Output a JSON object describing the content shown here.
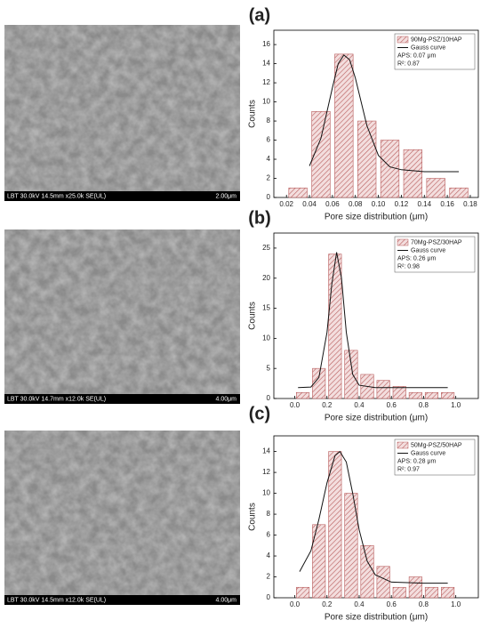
{
  "panels": [
    {
      "label": "(a)",
      "image_caption": "LBT 30.0kV 14.5mm x25.0k SE(UL)",
      "scale_bar": "2.00μm"
    },
    {
      "label": "(b)",
      "image_caption": "LBT 30.0kV 14.7mm x12.0k SE(UL)",
      "scale_bar": "4.00μm"
    },
    {
      "label": "(c)",
      "image_caption": "LBT 30.0kV 14.5mm x12.0k SE(UL)",
      "scale_bar": "4.00μm"
    }
  ],
  "chart_data": [
    {
      "type": "histogram",
      "name": "90Mg-PSZ/10HAP",
      "color": "#b85c5c",
      "x_label": "Pore size distribution (μm)",
      "y_label": "Counts",
      "bins": [
        0.02,
        0.04,
        0.06,
        0.08,
        0.1,
        0.12,
        0.14,
        0.16,
        0.18
      ],
      "values": [
        1,
        9,
        15,
        8,
        6,
        5,
        2,
        1
      ],
      "curve": {
        "name": "Gauss curve",
        "color": "#111111",
        "x": [
          0.04,
          0.05,
          0.06,
          0.065,
          0.07,
          0.075,
          0.08,
          0.09,
          0.1,
          0.11,
          0.12,
          0.14,
          0.17
        ],
        "values": [
          3.3,
          6.2,
          11.5,
          14.0,
          14.9,
          14.4,
          12.5,
          7.5,
          4.4,
          3.2,
          2.9,
          2.7,
          2.7
        ]
      },
      "annotations": [
        "APS: 0.07 μm",
        "R²: 0.87"
      ],
      "xlim": [
        0.009,
        0.187
      ],
      "xticks": [
        0.02,
        0.04,
        0.06,
        0.08,
        {
          "value": 0.1,
          "label": "0.10"
        },
        0.12,
        0.14,
        0.16,
        0.18
      ],
      "ylim": [
        0,
        17.5
      ],
      "yticks": [
        0,
        2,
        4,
        6,
        8,
        10,
        12,
        14,
        16
      ],
      "legend": "upper right"
    },
    {
      "type": "histogram",
      "name": "70Mg-PSZ/30HAP",
      "color": "#b85c5c",
      "x_label": "Pore size distribution (μm)",
      "y_label": "Counts",
      "bins": [
        0,
        0.1,
        0.2,
        0.3,
        0.4,
        0.5,
        0.6,
        0.7,
        0.8,
        0.9,
        1
      ],
      "values": [
        1,
        5,
        24,
        8,
        4,
        3,
        2,
        1,
        1,
        1
      ],
      "curve": {
        "name": "Gauss curve",
        "color": "#111111",
        "x": [
          0.02,
          0.1,
          0.15,
          0.2,
          0.23,
          0.26,
          0.29,
          0.32,
          0.36,
          0.4,
          0.5,
          0.7,
          0.95
        ],
        "values": [
          1.8,
          1.9,
          3.5,
          11,
          19,
          24.3,
          20,
          11,
          4,
          2.2,
          1.8,
          1.8,
          1.8
        ]
      },
      "annotations": [
        "APS: 0.26 μm",
        "R²: 0.98"
      ],
      "xlim": [
        -0.13,
        1.14
      ],
      "xticks": [
        {
          "value": 0,
          "label": "0.0"
        },
        0.2,
        0.4,
        0.6,
        0.8,
        {
          "value": 1,
          "label": "1.0"
        }
      ],
      "ylim": [
        0,
        27.5
      ],
      "yticks": [
        0,
        5,
        10,
        15,
        20,
        25
      ],
      "legend": "upper right"
    },
    {
      "type": "histogram",
      "name": "50Mg-PSZ/50HAP",
      "color": "#b85c5c",
      "x_label": "Pore size distribution (μm)",
      "y_label": "Counts",
      "bins": [
        0,
        0.1,
        0.2,
        0.3,
        0.4,
        0.5,
        0.6,
        0.7,
        0.8,
        0.9,
        1
      ],
      "values": [
        1,
        7,
        14,
        10,
        5,
        3,
        1,
        2,
        1,
        1
      ],
      "curve": {
        "name": "Gauss curve",
        "color": "#111111",
        "x": [
          0.03,
          0.1,
          0.15,
          0.2,
          0.25,
          0.28,
          0.32,
          0.36,
          0.4,
          0.45,
          0.5,
          0.6,
          0.8,
          0.95
        ],
        "values": [
          2.5,
          4.5,
          7.5,
          11,
          13.6,
          14,
          13,
          10,
          6.5,
          3.5,
          2.2,
          1.5,
          1.4,
          1.4
        ]
      },
      "annotations": [
        "APS: 0.28 μm",
        "R²: 0.97"
      ],
      "xlim": [
        -0.13,
        1.14
      ],
      "xticks": [
        {
          "value": 0,
          "label": "0.0"
        },
        0.2,
        0.4,
        0.6,
        0.8,
        {
          "value": 1,
          "label": "1.0"
        }
      ],
      "ylim": [
        0,
        15.5
      ],
      "yticks": [
        0,
        2,
        4,
        6,
        8,
        10,
        12,
        14
      ],
      "legend": "upper right"
    }
  ]
}
